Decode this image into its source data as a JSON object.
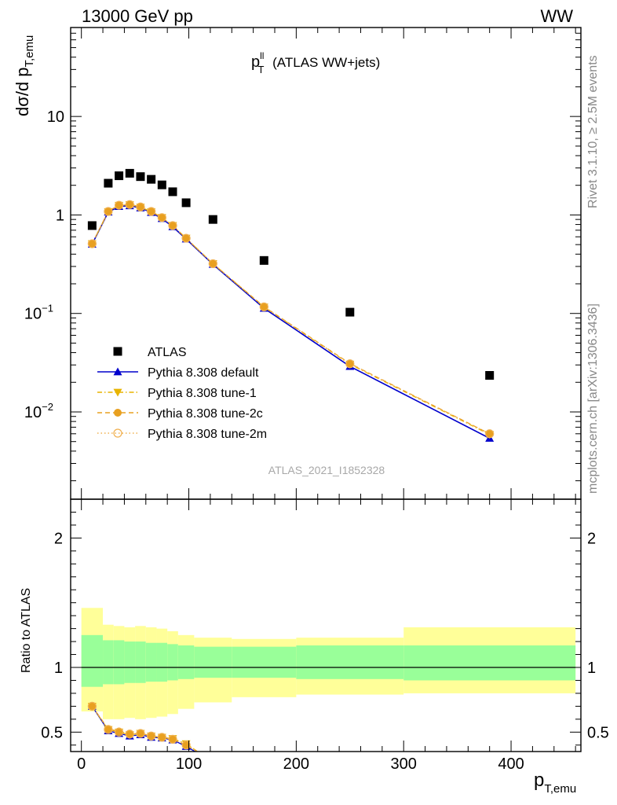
{
  "header": {
    "energy_label": "13000 GeV pp",
    "process_label": "WW"
  },
  "side_labels": {
    "rivet": "Rivet 3.1.10, ≥ 2.5M events",
    "mcplots": "mcplots.cern.ch [arXiv:1306.3436]"
  },
  "chart_data": [
    {
      "type": "scatter",
      "title_main": "p",
      "title_sup": "ll",
      "title_sub": "T",
      "title_rest": " (ATLAS WW+jets)",
      "ylabel_main": "dσ/d p",
      "ylabel_sub": "T,emu",
      "yscale": "log",
      "ylim": [
        0.0013,
        80
      ],
      "xlim": [
        -10,
        465
      ],
      "y_tick_labels": [
        {
          "value": 10,
          "label": "10"
        },
        {
          "value": 1,
          "label": "1"
        },
        {
          "value": 0.1,
          "label": "10",
          "sup": "−1"
        },
        {
          "value": 0.01,
          "label": "10",
          "sup": "−2"
        }
      ],
      "watermark": "ATLAS_2021_I1852328",
      "legend": {
        "position": "bottom-left",
        "entries": [
          "ATLAS",
          "Pythia 8.308 default",
          "Pythia 8.308 tune-1",
          "Pythia 8.308 tune-2c",
          "Pythia 8.308 tune-2m"
        ]
      },
      "series": [
        {
          "name": "ATLAS",
          "color": "#000000",
          "marker": "square",
          "x": [
            10,
            25,
            35,
            45,
            55,
            65,
            75,
            85,
            97.5,
            122.5,
            170,
            250,
            380
          ],
          "y": [
            0.78,
            2.1,
            2.5,
            2.65,
            2.45,
            2.3,
            2.02,
            1.72,
            1.33,
            0.9,
            0.345,
            0.103,
            0.0235
          ]
        },
        {
          "name": "Pythia 8.308 default",
          "color": "#0000cc",
          "marker": "triangle-up",
          "line": "solid",
          "x": [
            10,
            25,
            35,
            45,
            55,
            65,
            75,
            85,
            97.5,
            122.5,
            170,
            250,
            380
          ],
          "y": [
            0.505,
            1.07,
            1.22,
            1.24,
            1.18,
            1.06,
            0.92,
            0.76,
            0.57,
            0.315,
            0.113,
            0.029,
            0.0054
          ]
        },
        {
          "name": "Pythia 8.308 tune-1",
          "color": "#e8b400",
          "marker": "triangle-down",
          "line": "dashdot",
          "x": [
            10,
            25,
            35,
            45,
            55,
            65,
            75,
            85,
            97.5,
            122.5,
            170,
            250,
            380
          ],
          "y": [
            0.51,
            1.08,
            1.25,
            1.27,
            1.2,
            1.08,
            0.94,
            0.78,
            0.58,
            0.32,
            0.116,
            0.0305,
            0.0059
          ]
        },
        {
          "name": "Pythia 8.308 tune-2c",
          "color": "#e8a020",
          "marker": "circle",
          "line": "dashed",
          "x": [
            10,
            25,
            35,
            45,
            55,
            65,
            75,
            85,
            97.5,
            122.5,
            170,
            250,
            380
          ],
          "y": [
            0.51,
            1.09,
            1.26,
            1.28,
            1.21,
            1.09,
            0.94,
            0.78,
            0.58,
            0.32,
            0.117,
            0.031,
            0.006
          ]
        },
        {
          "name": "Pythia 8.308 tune-2m",
          "color": "#f0b050",
          "marker": "circle-open",
          "line": "dotted",
          "x": [
            10,
            25,
            35,
            45,
            55,
            65,
            75,
            85,
            97.5,
            122.5,
            170,
            250,
            380
          ],
          "y": [
            0.51,
            1.085,
            1.255,
            1.275,
            1.205,
            1.085,
            0.94,
            0.78,
            0.58,
            0.32,
            0.1165,
            0.0308,
            0.006
          ]
        }
      ]
    },
    {
      "type": "line",
      "ylabel": "Ratio to ATLAS",
      "ylim": [
        0.35,
        2.3
      ],
      "xlim": [
        -10,
        465
      ],
      "y_ticks": [
        0.5,
        1,
        2
      ],
      "y_tick_labels": [
        "0.5",
        "1",
        "2"
      ],
      "x_ticks": [
        0,
        100,
        200,
        300,
        400
      ],
      "x_tick_labels": [
        "0",
        "100",
        "200",
        "300",
        "400"
      ],
      "xlabel_main": "p",
      "xlabel_sub": "T,emu",
      "bin_edges": [
        0,
        20,
        30,
        40,
        50,
        60,
        70,
        80,
        90,
        105,
        140,
        200,
        300,
        460
      ],
      "band_inner": [
        [
          0.85,
          1.25
        ],
        [
          0.87,
          1.21
        ],
        [
          0.87,
          1.21
        ],
        [
          0.88,
          1.2
        ],
        [
          0.88,
          1.2
        ],
        [
          0.89,
          1.19
        ],
        [
          0.89,
          1.19
        ],
        [
          0.9,
          1.18
        ],
        [
          0.91,
          1.17
        ],
        [
          0.92,
          1.16
        ],
        [
          0.92,
          1.16
        ],
        [
          0.91,
          1.17
        ],
        [
          0.9,
          1.17
        ]
      ],
      "band_outer": [
        [
          0.66,
          1.46
        ],
        [
          0.6,
          1.33
        ],
        [
          0.6,
          1.32
        ],
        [
          0.61,
          1.31
        ],
        [
          0.6,
          1.32
        ],
        [
          0.61,
          1.31
        ],
        [
          0.62,
          1.3
        ],
        [
          0.64,
          1.28
        ],
        [
          0.68,
          1.25
        ],
        [
          0.73,
          1.23
        ],
        [
          0.77,
          1.22
        ],
        [
          0.79,
          1.23
        ],
        [
          0.8,
          1.31
        ]
      ],
      "series": [
        {
          "name": "Pythia 8.308 default",
          "color": "#0000cc",
          "marker": "triangle-up",
          "line": "solid",
          "x": [
            10,
            25,
            35,
            45,
            55,
            65,
            75,
            85,
            97.5,
            110
          ],
          "y": [
            0.7,
            0.51,
            0.49,
            0.47,
            0.48,
            0.46,
            0.455,
            0.44,
            0.39,
            0.33
          ]
        },
        {
          "name": "Pythia 8.308 tune-1",
          "color": "#e8b400",
          "marker": "triangle-down",
          "line": "dashdot",
          "x": [
            10,
            25,
            35,
            45,
            55,
            65,
            75,
            85,
            97.5,
            110
          ],
          "y": [
            0.7,
            0.52,
            0.5,
            0.48,
            0.49,
            0.47,
            0.46,
            0.45,
            0.41,
            0.34
          ]
        },
        {
          "name": "Pythia 8.308 tune-2c",
          "color": "#e8a020",
          "marker": "circle",
          "line": "dashed",
          "x": [
            10,
            25,
            35,
            45,
            55,
            65,
            75,
            85,
            97.5,
            110
          ],
          "y": [
            0.7,
            0.525,
            0.505,
            0.485,
            0.49,
            0.47,
            0.46,
            0.445,
            0.4,
            0.34
          ]
        },
        {
          "name": "Pythia 8.308 tune-2m",
          "color": "#f0b050",
          "marker": "circle-open",
          "line": "dotted",
          "x": [
            10,
            25,
            35,
            45,
            55,
            65,
            75,
            85,
            97.5,
            110
          ],
          "y": [
            0.7,
            0.52,
            0.5,
            0.485,
            0.49,
            0.47,
            0.46,
            0.445,
            0.4,
            0.34
          ]
        }
      ]
    }
  ]
}
